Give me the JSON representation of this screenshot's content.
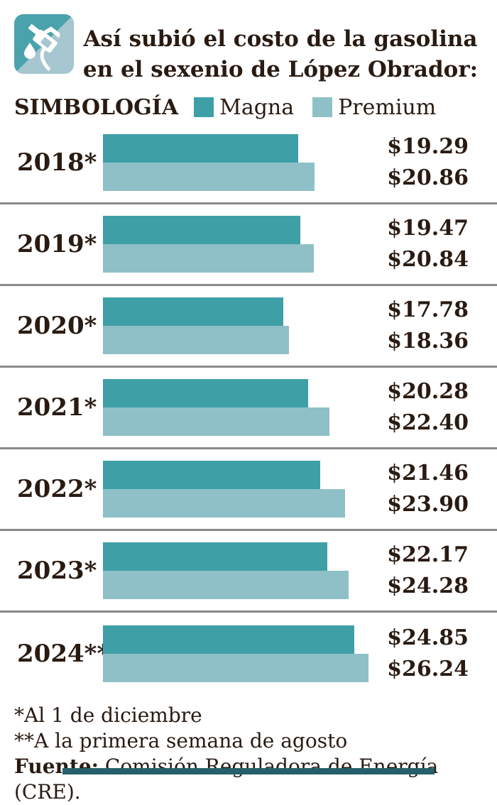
{
  "header": {
    "title_line1": "Así subió el costo de la gasolina",
    "title_line2": "en el sexenio de López Obrador:",
    "icon": "fuel-pump-icon"
  },
  "legend": {
    "label": "SIMBOLOGÍA",
    "items": [
      {
        "name": "Magna",
        "color": "#3f9fa7"
      },
      {
        "name": "Premium",
        "color": "#8fc0c7"
      }
    ]
  },
  "rows": [
    {
      "year": "2018*",
      "magna": 19.29,
      "premium": 20.86,
      "magna_label": "$19.29",
      "premium_label": "$20.86"
    },
    {
      "year": "2019*",
      "magna": 19.47,
      "premium": 20.84,
      "magna_label": "$19.47",
      "premium_label": "$20.84"
    },
    {
      "year": "2020*",
      "magna": 17.78,
      "premium": 18.36,
      "magna_label": "$17.78",
      "premium_label": "$18.36"
    },
    {
      "year": "2021*",
      "magna": 20.28,
      "premium": 22.4,
      "magna_label": "$20.28",
      "premium_label": "$22.40"
    },
    {
      "year": "2022*",
      "magna": 21.46,
      "premium": 23.9,
      "magna_label": "$21.46",
      "premium_label": "$23.90"
    },
    {
      "year": "2023*",
      "magna": 22.17,
      "premium": 24.28,
      "magna_label": "$22.17",
      "premium_label": "$24.28"
    },
    {
      "year": "2024**",
      "magna": 24.85,
      "premium": 26.24,
      "magna_label": "$24.85",
      "premium_label": "$26.24"
    }
  ],
  "chart_data": {
    "type": "bar",
    "orientation": "horizontal",
    "title": "Así subió el costo de la gasolina en el sexenio de López Obrador:",
    "categories": [
      "2018*",
      "2019*",
      "2020*",
      "2021*",
      "2022*",
      "2023*",
      "2024**"
    ],
    "series": [
      {
        "name": "Magna",
        "color": "#3f9fa7",
        "values": [
          19.29,
          19.47,
          17.78,
          20.28,
          21.46,
          22.17,
          24.85
        ]
      },
      {
        "name": "Premium",
        "color": "#8fc0c7",
        "values": [
          20.86,
          20.84,
          18.36,
          22.4,
          23.9,
          24.28,
          26.24
        ]
      }
    ],
    "value_labels": [
      [
        "$19.29",
        "$20.86"
      ],
      [
        "$19.47",
        "$20.84"
      ],
      [
        "$17.78",
        "$18.36"
      ],
      [
        "$20.28",
        "$22.40"
      ],
      [
        "$21.46",
        "$23.90"
      ],
      [
        "$22.17",
        "$24.28"
      ],
      [
        "$24.85",
        "$26.24"
      ]
    ],
    "value_prefix": "$",
    "xlim": [
      0,
      27
    ],
    "grid": false,
    "legend_position": "top",
    "notes": [
      "*Al 1 de diciembre",
      "**A la primera semana de agosto"
    ],
    "source": "Fuente: Comisión Reguladora de Energía (CRE)."
  },
  "footer": {
    "note1": "*Al 1 de diciembre",
    "note2": "**A la primera semana de agosto",
    "source_label": "Fuente:",
    "source_rest": " Comisión Reguladora de Energía (CRE)."
  },
  "colors": {
    "magna": "#3f9fa7",
    "premium": "#8fc0c7",
    "icon_dark": "#4aa3ac",
    "icon_light": "#a6c6d0",
    "text": "#2a1b12",
    "separator": "#8a8a8a",
    "bottom_bar": "#265f6b"
  }
}
